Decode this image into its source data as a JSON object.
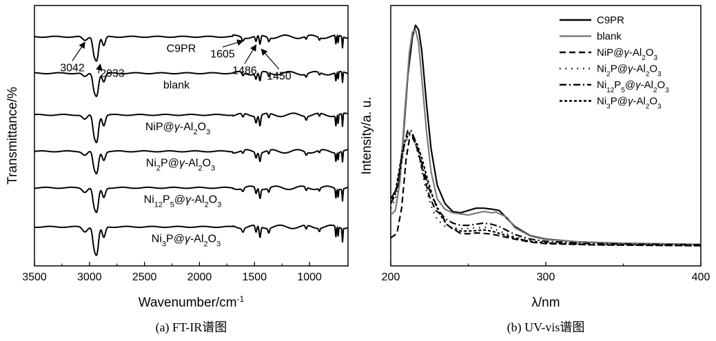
{
  "chart_data": [
    {
      "type": "line",
      "panel": "(a)",
      "caption": "(a) FT-IR谱图",
      "xlabel": "Wavenumber/cm",
      "xlabel_sup": "-1",
      "ylabel": "Transmittance/%",
      "xlim": [
        3500,
        650
      ],
      "x_reversed": true,
      "x_ticks": [
        3500,
        3000,
        2500,
        2000,
        1500,
        1000
      ],
      "y_ticks_shown": false,
      "stacked_offset": true,
      "series": [
        {
          "name": "C9PR",
          "name_html": "C9PR",
          "baseline": 0.88,
          "scale": 1.0
        },
        {
          "name": "blank",
          "name_html": "blank",
          "baseline": 0.74,
          "scale": 0.95
        },
        {
          "name": "NiP@γ-Al2O3",
          "name_html": "NiP@<tspan font-style='italic'>γ</tspan>-Al<tspan baseline-shift='sub' font-size='11'>2</tspan>O<tspan baseline-shift='sub' font-size='11'>3</tspan>",
          "baseline": 0.58,
          "scale": 1.15
        },
        {
          "name": "Ni2P@γ-Al2O3",
          "name_html": "Ni<tspan baseline-shift='sub' font-size='11'>2</tspan>P@<tspan font-style='italic'>γ</tspan>-Al<tspan baseline-shift='sub' font-size='11'>2</tspan>O<tspan baseline-shift='sub' font-size='11'>3</tspan>",
          "baseline": 0.44,
          "scale": 0.95
        },
        {
          "name": "Ni12P5@γ-Al2O3",
          "name_html": "Ni<tspan baseline-shift='sub' font-size='11'>12</tspan>P<tspan baseline-shift='sub' font-size='11'>5</tspan>@<tspan font-style='italic'>γ</tspan>-Al<tspan baseline-shift='sub' font-size='11'>2</tspan>O<tspan baseline-shift='sub' font-size='11'>3</tspan>",
          "baseline": 0.3,
          "scale": 1.05
        },
        {
          "name": "Ni3P@γ-Al2O3",
          "name_html": "Ni<tspan baseline-shift='sub' font-size='11'>3</tspan>P@<tspan font-style='italic'>γ</tspan>-Al<tspan baseline-shift='sub' font-size='11'>2</tspan>O<tspan baseline-shift='sub' font-size='11'>3</tspan>",
          "baseline": 0.15,
          "scale": 1.2
        }
      ],
      "peaks": [
        {
          "x": 3042,
          "depth": 0.015,
          "width": 30
        },
        {
          "x": 2960,
          "depth": 0.05,
          "width": 18
        },
        {
          "x": 2933,
          "depth": 0.085,
          "width": 22
        },
        {
          "x": 2870,
          "depth": 0.035,
          "width": 20
        },
        {
          "x": 1605,
          "depth": 0.012,
          "width": 12
        },
        {
          "x": 1486,
          "depth": 0.022,
          "width": 10
        },
        {
          "x": 1450,
          "depth": 0.035,
          "width": 10
        },
        {
          "x": 1370,
          "depth": 0.015,
          "width": 10
        },
        {
          "x": 1030,
          "depth": 0.012,
          "width": 10
        },
        {
          "x": 910,
          "depth": 0.01,
          "width": 8
        },
        {
          "x": 760,
          "depth": 0.035,
          "width": 6
        },
        {
          "x": 740,
          "depth": 0.03,
          "width": 5
        },
        {
          "x": 700,
          "depth": 0.045,
          "width": 5
        }
      ],
      "annotations": [
        {
          "text": "3042",
          "x": 3042
        },
        {
          "text": "2933",
          "x": 2933
        },
        {
          "text": "1605",
          "x": 1605
        },
        {
          "text": "1486",
          "x": 1486
        },
        {
          "text": "1450",
          "x": 1450
        }
      ]
    },
    {
      "type": "line",
      "panel": "(b)",
      "caption": "(b) UV-vis谱图",
      "xlabel": "λ/nm",
      "ylabel": "Intensity/a. u.",
      "xlim": [
        200,
        400
      ],
      "ylim": [
        0,
        1
      ],
      "x_ticks": [
        200,
        300,
        400
      ],
      "y_ticks_shown": false,
      "legend_position": "top-right",
      "series": [
        {
          "name": "C9PR",
          "name_html": "C9PR",
          "color": "#000000",
          "dash": "none",
          "points": [
            [
              200,
              0.22
            ],
            [
              205,
              0.28
            ],
            [
              208,
              0.48
            ],
            [
              211,
              0.76
            ],
            [
              214,
              0.93
            ],
            [
              216,
              0.98
            ],
            [
              218,
              0.96
            ],
            [
              220,
              0.87
            ],
            [
              223,
              0.64
            ],
            [
              226,
              0.44
            ],
            [
              230,
              0.28
            ],
            [
              235,
              0.2
            ],
            [
              240,
              0.165
            ],
            [
              245,
              0.16
            ],
            [
              250,
              0.17
            ],
            [
              255,
              0.18
            ],
            [
              260,
              0.18
            ],
            [
              265,
              0.176
            ],
            [
              270,
              0.17
            ],
            [
              275,
              0.135
            ],
            [
              280,
              0.1
            ],
            [
              290,
              0.06
            ],
            [
              300,
              0.045
            ],
            [
              320,
              0.033
            ],
            [
              350,
              0.026
            ],
            [
              400,
              0.022
            ]
          ]
        },
        {
          "name": "blank",
          "name_html": "blank",
          "color": "#7a7a7a",
          "dash": "none",
          "points": [
            [
              200,
              0.15
            ],
            [
              203,
              0.17
            ],
            [
              206,
              0.3
            ],
            [
              209,
              0.6
            ],
            [
              212,
              0.86
            ],
            [
              214,
              0.95
            ],
            [
              216,
              0.96
            ],
            [
              218,
              0.9
            ],
            [
              220,
              0.75
            ],
            [
              223,
              0.52
            ],
            [
              226,
              0.34
            ],
            [
              230,
              0.22
            ],
            [
              235,
              0.175
            ],
            [
              240,
              0.16
            ],
            [
              245,
              0.155
            ],
            [
              250,
              0.15
            ],
            [
              255,
              0.158
            ],
            [
              260,
              0.166
            ],
            [
              265,
              0.16
            ],
            [
              268,
              0.163
            ],
            [
              272,
              0.15
            ],
            [
              275,
              0.14
            ],
            [
              280,
              0.095
            ],
            [
              290,
              0.058
            ],
            [
              300,
              0.043
            ],
            [
              320,
              0.033
            ],
            [
              350,
              0.027
            ],
            [
              400,
              0.022
            ]
          ]
        },
        {
          "name": "NiP@γ-Al2O3",
          "name_html": "NiP@<tspan font-style='italic'>γ</tspan>-Al<tspan baseline-shift='sub' font-size='10'>2</tspan>O<tspan baseline-shift='sub' font-size='10'>3</tspan>",
          "color": "#000000",
          "dash": "9,5",
          "points": [
            [
              200,
              0.05
            ],
            [
              204,
              0.07
            ],
            [
              207,
              0.18
            ],
            [
              210,
              0.4
            ],
            [
              212,
              0.48
            ],
            [
              214,
              0.49
            ],
            [
              216,
              0.46
            ],
            [
              218,
              0.42
            ],
            [
              221,
              0.33
            ],
            [
              225,
              0.23
            ],
            [
              229,
              0.17
            ],
            [
              233,
              0.15
            ],
            [
              236,
              0.11
            ],
            [
              240,
              0.09
            ],
            [
              245,
              0.07
            ],
            [
              250,
              0.068
            ],
            [
              255,
              0.072
            ],
            [
              260,
              0.07
            ],
            [
              265,
              0.067
            ],
            [
              270,
              0.06
            ],
            [
              280,
              0.045
            ],
            [
              290,
              0.032
            ],
            [
              300,
              0.025
            ],
            [
              330,
              0.02
            ],
            [
              400,
              0.016
            ]
          ]
        },
        {
          "name": "Ni2P@γ-Al2O3",
          "name_html": "Ni<tspan baseline-shift='sub' font-size='10'>2</tspan>P@<tspan font-style='italic'>γ</tspan>-Al<tspan baseline-shift='sub' font-size='10'>2</tspan>O<tspan baseline-shift='sub' font-size='10'>3</tspan>",
          "color": "#000000",
          "dash": "1.5,7",
          "points": [
            [
              200,
              0.18
            ],
            [
              203,
              0.22
            ],
            [
              206,
              0.33
            ],
            [
              209,
              0.46
            ],
            [
              212,
              0.5
            ],
            [
              214,
              0.49
            ],
            [
              216,
              0.46
            ],
            [
              219,
              0.38
            ],
            [
              222,
              0.28
            ],
            [
              226,
              0.19
            ],
            [
              230,
              0.13
            ],
            [
              235,
              0.1
            ],
            [
              240,
              0.095
            ],
            [
              245,
              0.09
            ],
            [
              250,
              0.092
            ],
            [
              255,
              0.095
            ],
            [
              260,
              0.096
            ],
            [
              265,
              0.094
            ],
            [
              270,
              0.08
            ],
            [
              280,
              0.055
            ],
            [
              290,
              0.038
            ],
            [
              300,
              0.03
            ],
            [
              330,
              0.022
            ],
            [
              400,
              0.018
            ]
          ]
        },
        {
          "name": "Ni12P5@γ-Al2O3",
          "name_html": "Ni<tspan baseline-shift='sub' font-size='10'>12</tspan>P<tspan baseline-shift='sub' font-size='10'>5</tspan>@<tspan font-style='italic'>γ</tspan>-Al<tspan baseline-shift='sub' font-size='10'>2</tspan>O<tspan baseline-shift='sub' font-size='10'>3</tspan>",
          "color": "#000000",
          "dash": "10,4,2,4",
          "points": [
            [
              200,
              0.2
            ],
            [
              203,
              0.24
            ],
            [
              206,
              0.35
            ],
            [
              209,
              0.47
            ],
            [
              211,
              0.52
            ],
            [
              213,
              0.52
            ],
            [
              215,
              0.49
            ],
            [
              218,
              0.43
            ],
            [
              221,
              0.35
            ],
            [
              225,
              0.26
            ],
            [
              229,
              0.2
            ],
            [
              232,
              0.16
            ],
            [
              235,
              0.135
            ],
            [
              240,
              0.115
            ],
            [
              245,
              0.105
            ],
            [
              250,
              0.105
            ],
            [
              255,
              0.11
            ],
            [
              260,
              0.115
            ],
            [
              265,
              0.11
            ],
            [
              270,
              0.1
            ],
            [
              280,
              0.065
            ],
            [
              290,
              0.045
            ],
            [
              300,
              0.035
            ],
            [
              330,
              0.025
            ],
            [
              400,
              0.02
            ]
          ]
        },
        {
          "name": "Ni3P@γ-Al2O3",
          "name_html": "Ni<tspan baseline-shift='sub' font-size='10'>3</tspan>P@<tspan font-style='italic'>γ</tspan>-Al<tspan baseline-shift='sub' font-size='10'>2</tspan>O<tspan baseline-shift='sub' font-size='10'>3</tspan>",
          "color": "#000000",
          "dash": "4,3",
          "points": [
            [
              200,
              0.2
            ],
            [
              203,
              0.25
            ],
            [
              206,
              0.37
            ],
            [
              209,
              0.47
            ],
            [
              212,
              0.51
            ],
            [
              214,
              0.5
            ],
            [
              217,
              0.46
            ],
            [
              220,
              0.4
            ],
            [
              224,
              0.3
            ],
            [
              228,
              0.21
            ],
            [
              232,
              0.15
            ],
            [
              236,
              0.11
            ],
            [
              240,
              0.09
            ],
            [
              245,
              0.08
            ],
            [
              250,
              0.08
            ],
            [
              255,
              0.082
            ],
            [
              260,
              0.085
            ],
            [
              265,
              0.08
            ],
            [
              270,
              0.07
            ],
            [
              280,
              0.05
            ],
            [
              290,
              0.035
            ],
            [
              300,
              0.028
            ],
            [
              330,
              0.02
            ],
            [
              400,
              0.016
            ]
          ]
        }
      ]
    }
  ]
}
